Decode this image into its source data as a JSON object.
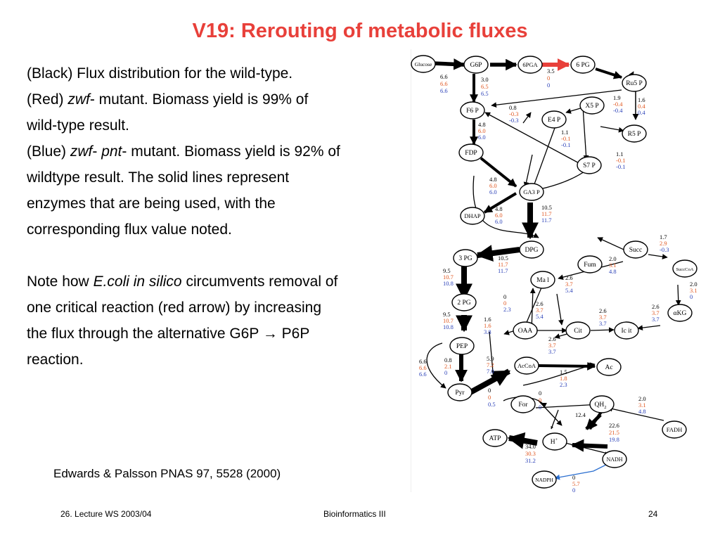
{
  "slide": {
    "title": "V19: Rerouting of metabolic fluxes",
    "lines": {
      "l1": "(Black) Flux distribution for the wild-type.",
      "l2a": "(Red) ",
      "l2b": "zwf",
      "l2c": "- mutant. Biomass yield is 99% of",
      "l3": "wild-type result.",
      "l4a": "(Blue) ",
      "l4b": "zwf",
      "l4c": "- ",
      "l4d": "pnt",
      "l4e": "- mutant. Biomass yield is 92% of",
      "l5": "wildtype result. The solid lines represent",
      "l6": "enzymes that are being used, with the",
      "l7": "corresponding flux value noted.",
      "l8a": "Note how ",
      "l8b": "E.coli in silico",
      "l8c": " circumvents removal of",
      "l9": "one critical reaction (red arrow) by increasing",
      "l10a": "the flux through the alternative G6P ",
      "l10b": "→",
      "l10c": " P6P",
      "l11": "reaction."
    },
    "reference": "Edwards & Palsson PNAS 97, 5528 (2000)",
    "footer": {
      "left": "26. Lecture WS 2003/04",
      "center": "Bioinformatics III",
      "right": "24"
    }
  },
  "colors": {
    "title": "#e8403a",
    "wildtype": "#000000",
    "zwf": "#e0561f",
    "zwf_pnt": "#2b41b8",
    "knockout_arrow": "#e8403a"
  },
  "network": {
    "nodes": {
      "glucose": "Glucose",
      "g6p": "G6P",
      "pga6": "6PGA",
      "pg6": "6 PG",
      "ru5p": "Ru5 P",
      "f6p": "F6 P",
      "x5p": "X5 P",
      "e4p": "E4 P",
      "r5p": "R5 P",
      "fdp": "FDP",
      "s7p": "S7 P",
      "ga3p": "GA3 P",
      "dhap": "DHAP",
      "dpg": "DPG",
      "pg3": "3 PG",
      "succ": "Succ",
      "fum": "Fum",
      "succoa": "SuccCoA",
      "mal": "Ma l",
      "pg2": "2 PG",
      "akg": "αKG",
      "oaa": "OAA",
      "cit": "Cit",
      "icit": "Ic it",
      "pep": "PEP",
      "accoa": "AcCoA",
      "ac": "Ac",
      "pyr": "Pyr",
      "for": "For",
      "qh2": "QH",
      "qh2sub": "2",
      "atp": "ATP",
      "hplus": "H",
      "hplus_sup": "+",
      "fadh": "FADH",
      "nadh": "NADH",
      "nadph": "NADPH"
    },
    "fluxes": {
      "glc": [
        "6.6",
        "6.6",
        "6.6"
      ],
      "g6p": [
        "3.0",
        "6.5",
        "6.5"
      ],
      "pga": [
        "3.5",
        "0",
        "0"
      ],
      "x5p": [
        "1.9",
        "-0.4",
        "-0.4"
      ],
      "r5p": [
        "1.6",
        "0.4",
        "0.4"
      ],
      "e4p": [
        "0.8",
        "-0.3",
        "-0.3"
      ],
      "s7p_a": [
        "1.1",
        "-0.1",
        "-0.1"
      ],
      "s7p_b": [
        "1.1",
        "-0.1",
        "-0.1"
      ],
      "f6p": [
        "4.8",
        "6.0",
        "6.0"
      ],
      "fdp": [
        "4.8",
        "6.0",
        "6.0"
      ],
      "dhap": [
        "4.8",
        "6.0",
        "6.0"
      ],
      "ga3p": [
        "10.5",
        "11.7",
        "11.7"
      ],
      "dpg": [
        "10.5",
        "11.7",
        "11.7"
      ],
      "pg3": [
        "9.5",
        "10.7",
        "10.8"
      ],
      "pg2": [
        "9.5",
        "10.7",
        "10.8"
      ],
      "succ": [
        "1.7",
        "2.9",
        "-0.3"
      ],
      "fum": [
        "2.0",
        "3.1",
        "4.8"
      ],
      "succoa": [
        "2.0",
        "3.1",
        "0"
      ],
      "mal": [
        "2.6",
        "3.7",
        "5.4"
      ],
      "mal_oaa": [
        "2.6",
        "3.7",
        "5.4"
      ],
      "pep_oaa": [
        "0",
        "0",
        "2.3"
      ],
      "akg": [
        "2.6",
        "3.7",
        "3.7"
      ],
      "icit": [
        "2.6",
        "3.7",
        "3.7"
      ],
      "oaa_pep": [
        "1.6",
        "1.6",
        "3.8"
      ],
      "cit": [
        "2.6",
        "3.7",
        "3.7"
      ],
      "pep_pyr_left": [
        "6.6",
        "6.6",
        "6.6"
      ],
      "pep_pyr": [
        "0.8",
        "2.1",
        "0"
      ],
      "pyr_accoa": [
        "5.9",
        "7.2",
        "7.0"
      ],
      "ac": [
        "1.5",
        "1.8",
        "2.3"
      ],
      "for": [
        "0",
        "0",
        "0.5"
      ],
      "for_h": [
        "0",
        "0",
        "0"
      ],
      "qh2_h": "12.4",
      "fadh": [
        "2.0",
        "3.1",
        "4.8"
      ],
      "nadh_h": [
        "22.6",
        "21.5",
        "19.8"
      ],
      "atp": [
        "34.0",
        "30.3",
        "31.2"
      ],
      "nadph": [
        "0",
        "5.7",
        "0"
      ]
    }
  }
}
